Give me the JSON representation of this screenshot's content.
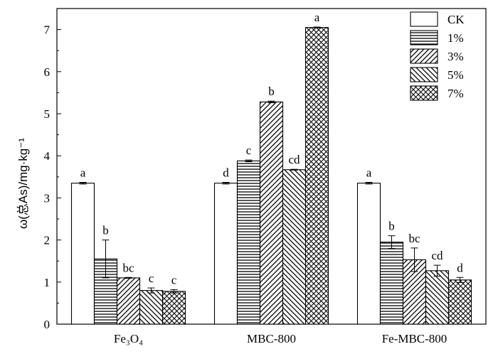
{
  "chart_data": {
    "type": "bar",
    "title": "",
    "xlabel": "",
    "ylabel": "ω(总As)/mg·kg⁻¹",
    "ylim": [
      0,
      7.5
    ],
    "yticks": [
      "0",
      "1",
      "2",
      "3",
      "4",
      "5",
      "6",
      "7"
    ],
    "grid": false,
    "legend_position": "top-right",
    "categories": [
      "Fe₃O₄",
      "MBC-800",
      "Fe-MBC-800"
    ],
    "series": [
      {
        "name": "CK",
        "pattern": "blank",
        "values": [
          3.35,
          3.35,
          3.35
        ],
        "errors": [
          0.02,
          0.02,
          0.02
        ],
        "labels": [
          "a",
          "d",
          "a"
        ]
      },
      {
        "name": "1%",
        "pattern": "horizontal",
        "values": [
          1.55,
          3.88,
          1.95
        ],
        "errors": [
          0.45,
          0.02,
          0.15
        ],
        "labels": [
          "b",
          "c",
          "b"
        ]
      },
      {
        "name": "3%",
        "pattern": "diagonal-up",
        "values": [
          1.1,
          5.28,
          1.53
        ],
        "errors": [
          0.01,
          0.02,
          0.28
        ],
        "labels": [
          "bc",
          "b",
          "bc"
        ]
      },
      {
        "name": "5%",
        "pattern": "diagonal-down",
        "values": [
          0.8,
          3.67,
          1.27
        ],
        "errors": [
          0.06,
          0.01,
          0.13
        ],
        "labels": [
          "c",
          "cd",
          "cd"
        ]
      },
      {
        "name": "7%",
        "pattern": "crosshatch",
        "values": [
          0.78,
          7.05,
          1.05
        ],
        "errors": [
          0.04,
          0.01,
          0.06
        ],
        "labels": [
          "c",
          "a",
          "d"
        ]
      }
    ]
  }
}
